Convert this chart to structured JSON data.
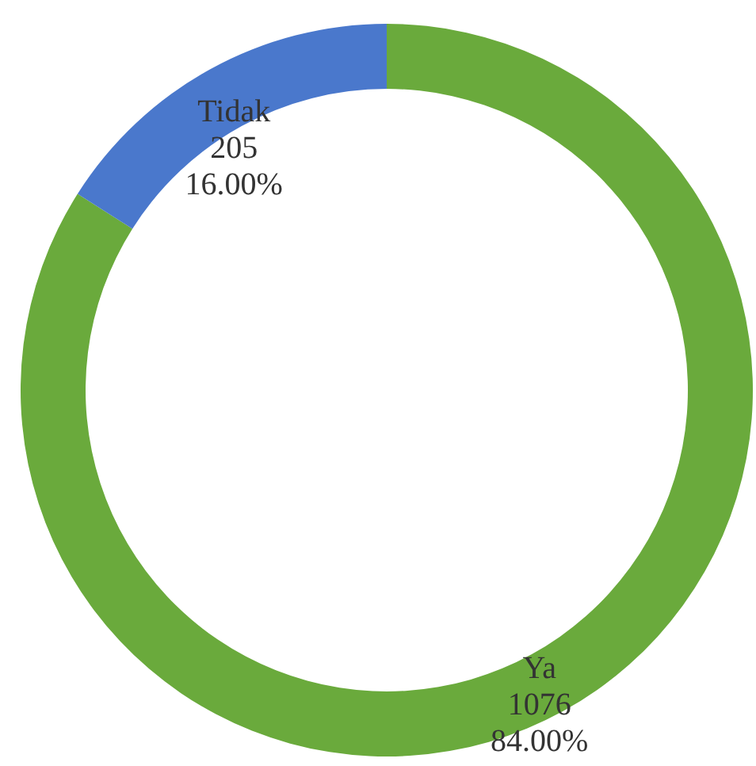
{
  "chart_data": {
    "type": "donut",
    "categories": [
      "Ya",
      "Tidak"
    ],
    "values": [
      1076,
      205
    ],
    "colors": [
      "#6aaa3c",
      "#4a78cc"
    ],
    "value_labels": [
      "1076\n84.00%",
      "205\n16.00%"
    ]
  }
}
